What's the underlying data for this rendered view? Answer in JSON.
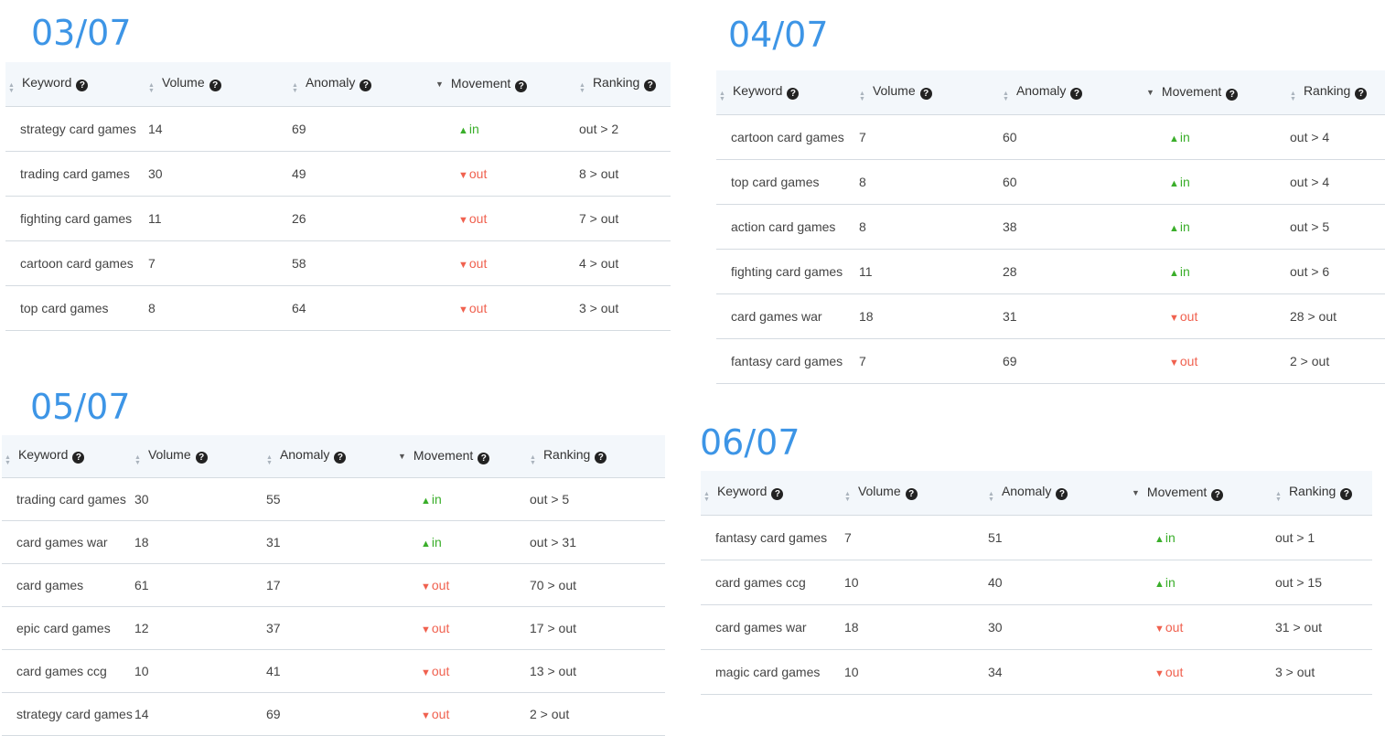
{
  "headers": {
    "keyword": "Keyword",
    "volume": "Volume",
    "anomaly": "Anomaly",
    "movement": "Movement",
    "ranking": "Ranking"
  },
  "icons": {
    "sort": "sort-icon",
    "sort_desc": "sort-desc-icon",
    "help": "help-circle-icon",
    "arrow_up": "triangle-up-icon",
    "arrow_down": "triangle-down-icon"
  },
  "colors": {
    "date": "#3d95e6",
    "movement_in": "#3aae2a",
    "movement_out": "#f0614f",
    "header_bg": "#f3f7fb"
  },
  "panels": [
    {
      "date": "03/07",
      "rows": [
        {
          "keyword": "strategy card games",
          "volume": "14",
          "anomaly": "69",
          "movement": "in",
          "ranking": "out > 2"
        },
        {
          "keyword": "trading card games",
          "volume": "30",
          "anomaly": "49",
          "movement": "out",
          "ranking": "8 > out"
        },
        {
          "keyword": "fighting card games",
          "volume": "11",
          "anomaly": "26",
          "movement": "out",
          "ranking": "7 > out"
        },
        {
          "keyword": "cartoon card games",
          "volume": "7",
          "anomaly": "58",
          "movement": "out",
          "ranking": "4 > out"
        },
        {
          "keyword": "top card games",
          "volume": "8",
          "anomaly": "64",
          "movement": "out",
          "ranking": "3 > out"
        }
      ]
    },
    {
      "date": "04/07",
      "rows": [
        {
          "keyword": "cartoon card games",
          "volume": "7",
          "anomaly": "60",
          "movement": "in",
          "ranking": "out > 4"
        },
        {
          "keyword": "top card games",
          "volume": "8",
          "anomaly": "60",
          "movement": "in",
          "ranking": "out > 4"
        },
        {
          "keyword": "action card games",
          "volume": "8",
          "anomaly": "38",
          "movement": "in",
          "ranking": "out > 5"
        },
        {
          "keyword": "fighting card games",
          "volume": "11",
          "anomaly": "28",
          "movement": "in",
          "ranking": "out > 6"
        },
        {
          "keyword": "card games war",
          "volume": "18",
          "anomaly": "31",
          "movement": "out",
          "ranking": "28 > out"
        },
        {
          "keyword": "fantasy card games",
          "volume": "7",
          "anomaly": "69",
          "movement": "out",
          "ranking": "2 > out"
        }
      ]
    },
    {
      "date": "05/07",
      "rows": [
        {
          "keyword": "trading card games",
          "volume": "30",
          "anomaly": "55",
          "movement": "in",
          "ranking": "out > 5"
        },
        {
          "keyword": "card games war",
          "volume": "18",
          "anomaly": "31",
          "movement": "in",
          "ranking": "out > 31"
        },
        {
          "keyword": "card games",
          "volume": "61",
          "anomaly": "17",
          "movement": "out",
          "ranking": "70 > out"
        },
        {
          "keyword": "epic card games",
          "volume": "12",
          "anomaly": "37",
          "movement": "out",
          "ranking": "17 > out"
        },
        {
          "keyword": "card games ccg",
          "volume": "10",
          "anomaly": "41",
          "movement": "out",
          "ranking": "13 > out"
        },
        {
          "keyword": "strategy card games",
          "volume": "14",
          "anomaly": "69",
          "movement": "out",
          "ranking": "2 > out"
        }
      ]
    },
    {
      "date": "06/07",
      "rows": [
        {
          "keyword": "fantasy card games",
          "volume": "7",
          "anomaly": "51",
          "movement": "in",
          "ranking": "out > 1"
        },
        {
          "keyword": "card games ccg",
          "volume": "10",
          "anomaly": "40",
          "movement": "in",
          "ranking": "out > 15"
        },
        {
          "keyword": "card games war",
          "volume": "18",
          "anomaly": "30",
          "movement": "out",
          "ranking": "31 > out"
        },
        {
          "keyword": "magic card games",
          "volume": "10",
          "anomaly": "34",
          "movement": "out",
          "ranking": "3 > out"
        }
      ]
    }
  ]
}
